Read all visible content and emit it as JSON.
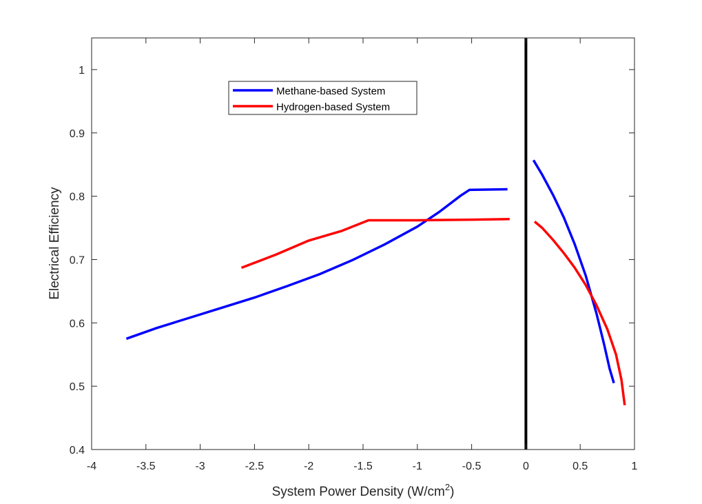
{
  "chart_data": {
    "type": "line",
    "title": "",
    "xlabel": "System Power Density (W/cm",
    "xlabel_sup": "2",
    "xlabel_suffix": ")",
    "ylabel": "Electrical Efficiency",
    "xlim": [
      -4,
      1
    ],
    "ylim": [
      0.4,
      1.05
    ],
    "x_ticks": [
      -4,
      -3.5,
      -3,
      -2.5,
      -2,
      -1.5,
      -1,
      -0.5,
      0,
      0.5,
      1
    ],
    "x_tick_labels": [
      "-4",
      "-3.5",
      "-3",
      "-2.5",
      "-2",
      "-1.5",
      "-1",
      "-0.5",
      "0",
      "0.5",
      "1"
    ],
    "y_ticks": [
      0.4,
      0.5,
      0.6,
      0.7,
      0.8,
      0.9,
      1
    ],
    "y_tick_labels": [
      "0.4",
      "0.5",
      "0.6",
      "0.7",
      "0.8",
      "0.9",
      "1"
    ],
    "grid": false,
    "legend_position": "top-left",
    "vertical_line": {
      "x": 0,
      "color": "#000000"
    },
    "series": [
      {
        "name": "Methane-based System",
        "color": "#0000ff",
        "segments": [
          {
            "x": [
              -3.68,
              -3.4,
              -3.1,
              -2.8,
              -2.5,
              -2.2,
              -1.9,
              -1.6,
              -1.3,
              -1.0,
              -0.8,
              -0.6,
              -0.52,
              -0.17
            ],
            "y": [
              0.575,
              0.592,
              0.608,
              0.624,
              0.64,
              0.658,
              0.677,
              0.699,
              0.724,
              0.752,
              0.775,
              0.801,
              0.81,
              0.811
            ]
          },
          {
            "x": [
              0.07,
              0.15,
              0.25,
              0.35,
              0.45,
              0.55,
              0.65,
              0.72,
              0.77,
              0.81
            ],
            "y": [
              0.857,
              0.834,
              0.802,
              0.766,
              0.724,
              0.675,
              0.615,
              0.566,
              0.528,
              0.505
            ]
          }
        ]
      },
      {
        "name": "Hydrogen-based System",
        "color": "#ff0000",
        "segments": [
          {
            "x": [
              -2.62,
              -2.3,
              -2.0,
              -1.7,
              -1.45,
              -1.0,
              -0.5,
              -0.15
            ],
            "y": [
              0.687,
              0.708,
              0.73,
              0.745,
              0.762,
              0.762,
              0.763,
              0.764
            ]
          },
          {
            "x": [
              0.08,
              0.15,
              0.25,
              0.35,
              0.45,
              0.55,
              0.65,
              0.75,
              0.83,
              0.88,
              0.91
            ],
            "y": [
              0.76,
              0.75,
              0.731,
              0.71,
              0.687,
              0.66,
              0.628,
              0.59,
              0.55,
              0.51,
              0.47
            ]
          }
        ]
      }
    ]
  }
}
